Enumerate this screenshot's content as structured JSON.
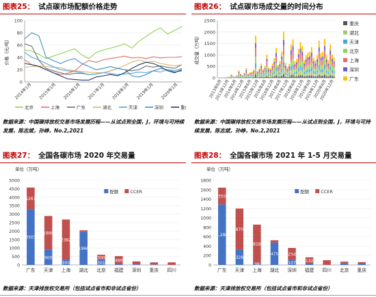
{
  "figures": {
    "fig25": {
      "label": "图表25：",
      "title": "试点碳市场配额价格走势"
    },
    "fig26": {
      "label": "图表26：",
      "title": "试点碳市场成交量的时间分布"
    },
    "fig27": {
      "label": "图表27：",
      "title": "全国各碳市场 2020 年交易量"
    },
    "fig28": {
      "label": "图表28：",
      "title": "全国各碳市场 2021 年 1-5 月交易量"
    }
  },
  "sources": {
    "top_left": "数据来源：中国碳排放权交易市场发展历程——从试点到全国，J，环境与可持续发展，陈志斌，孙峥，No.2,2021",
    "top_right": "数据来源：中国碳排放权交易市场发展历程——从试点到全国，J，环境与可持续发展，陈志斌，孙峥，No.2,2021",
    "bottom_left": "数据来源：天津排放权交易所（包括试点省市和非试点省份）",
    "bottom_right": "数据来源：天津排放权交易所（包括试点省市和非试点省份）"
  },
  "chart_data": [
    {
      "id": "fig25",
      "type": "line",
      "title": "",
      "ylabel": "价格（元/吨）",
      "ylim": [
        0,
        100
      ],
      "yticks": [
        0,
        20,
        40,
        60,
        80,
        100
      ],
      "x_ticks": [
        "2014年1月",
        "2015年1月",
        "2016年1月",
        "2017年1月",
        "2018年1月",
        "2019年1月",
        "2020年1月"
      ],
      "legend_position": "bottom",
      "series": [
        {
          "name": "北京",
          "color": "#92d050",
          "values": [
            52,
            50,
            45,
            38,
            42,
            46,
            50,
            54,
            44,
            38,
            48,
            52,
            55,
            58,
            62,
            55,
            66,
            74,
            82,
            88,
            78,
            84,
            90
          ]
        },
        {
          "name": "上海",
          "color": "#e46c6c",
          "values": [
            36,
            28,
            26,
            20,
            15,
            12,
            14,
            18,
            28,
            35,
            32,
            36,
            38,
            40,
            42,
            39,
            40,
            38,
            41,
            39,
            40,
            40,
            41
          ]
        },
        {
          "name": "广东",
          "color": "#6f6f6f",
          "values": [
            62,
            58,
            35,
            22,
            18,
            15,
            12,
            14,
            14,
            12,
            13,
            15,
            18,
            22,
            20,
            18,
            20,
            26,
            24,
            26,
            24,
            22,
            28
          ]
        },
        {
          "name": "湖北",
          "color": "#d9b36c",
          "values": [
            24,
            25,
            26,
            25,
            24,
            23,
            20,
            18,
            17,
            16,
            15,
            15,
            18,
            22,
            27,
            32,
            36,
            32,
            34,
            30,
            28,
            26,
            28
          ]
        },
        {
          "name": "天津",
          "color": "#4ea3d8",
          "values": [
            48,
            40,
            36,
            30,
            25,
            20,
            18,
            17,
            15,
            12,
            13,
            15,
            14,
            12,
            13,
            14,
            16,
            15,
            18,
            16,
            20,
            18,
            22
          ]
        },
        {
          "name": "深圳",
          "color": "#3c8fc4",
          "values": [
            70,
            80,
            75,
            40,
            35,
            30,
            35,
            38,
            30,
            25,
            20,
            22,
            25,
            22,
            20,
            10,
            8,
            12,
            18,
            22,
            20,
            16,
            18
          ]
        },
        {
          "name": "重庆",
          "color": "#1f3864",
          "values": [
            30,
            28,
            25,
            20,
            15,
            10,
            5,
            4,
            3,
            3,
            8,
            10,
            12,
            10,
            15,
            22,
            28,
            32,
            30,
            25,
            18,
            15,
            20
          ]
        }
      ]
    },
    {
      "id": "fig26",
      "type": "bar",
      "title": "",
      "ylabel": "成交量（万吨）",
      "ylim": [
        0,
        2500
      ],
      "yticks": [
        0,
        500,
        1000,
        1500,
        2000,
        2500
      ],
      "x_ticks": [
        "2013年6月",
        "2013年12月",
        "2014年6月",
        "2014年12月",
        "2015年6月",
        "2015年12月",
        "2016年6月",
        "2016年12月",
        "2017年6月",
        "2017年12月",
        "2018年6月",
        "2018年12月",
        "2019年6月",
        "2019年12月",
        "2020年6月",
        "2020年12月"
      ],
      "legend_position": "right",
      "series_names": [
        "重庆",
        "湖北",
        "天津",
        "北京",
        "上海",
        "深圳",
        "广东"
      ],
      "series_colors": [
        "#555555",
        "#a8c76e",
        "#4aa3df",
        "#92d050",
        "#e46c6c",
        "#6a5acd",
        "#ffc000"
      ],
      "totals": [
        5,
        10,
        15,
        20,
        30,
        40,
        60,
        150,
        80,
        60,
        120,
        320,
        180,
        120,
        220,
        420,
        180,
        240,
        260,
        360,
        1840,
        300,
        420,
        620,
        380,
        520,
        1010,
        460,
        420,
        620,
        860,
        1310,
        560,
        720,
        1140,
        2020,
        640,
        460,
        600,
        1460,
        1680,
        720,
        820,
        1260,
        1560,
        1380,
        760,
        980,
        1090,
        1140,
        1340,
        880,
        760,
        980,
        1620,
        1080,
        1140,
        1700,
        980,
        760,
        1460,
        1020,
        880
      ]
    },
    {
      "id": "fig27",
      "type": "bar",
      "title": "",
      "unit_label": "单位（万吨）",
      "ylim": [
        0,
        5000
      ],
      "yticks": [
        0,
        500,
        1000,
        1500,
        2000,
        2500,
        3000,
        3500,
        4000,
        4500,
        5000
      ],
      "categories": [
        "广东",
        "天津",
        "上海",
        "湖北",
        "北京",
        "福建",
        "深圳",
        "重庆",
        "四川"
      ],
      "legend_position": "top-right",
      "series": [
        {
          "name": "配额",
          "color": "#4472c4",
          "values": [
            3303,
            900,
            300,
            1966,
            301,
            40,
            35,
            30,
            0
          ]
        },
        {
          "name": "CCER",
          "color": "#c0504d",
          "values": [
            1267,
            1990,
            2382,
            80,
            300,
            480,
            170,
            120,
            150
          ]
        }
      ],
      "data_labels": [
        {
          "series": "配额",
          "category": "广东",
          "text": "3303"
        },
        {
          "series": "CCER",
          "category": "广东",
          "text": "1267"
        },
        {
          "series": "配额",
          "category": "天津",
          "text": "900"
        },
        {
          "series": "CCER",
          "category": "天津",
          "text": "1990"
        },
        {
          "series": "配额",
          "category": "上海",
          "text": "300"
        },
        {
          "series": "CCER",
          "category": "上海",
          "text": "2382"
        },
        {
          "series": "配额",
          "category": "湖北",
          "text": "1966"
        },
        {
          "series": "配额",
          "category": "北京",
          "text": "301"
        },
        {
          "series": "CCER",
          "category": "北京",
          "text": "300"
        },
        {
          "series": "CCER",
          "category": "福建",
          "text": "480"
        }
      ]
    },
    {
      "id": "fig28",
      "type": "bar",
      "title": "",
      "unit_label": "单位（万吨）",
      "ylim": [
        0,
        1800
      ],
      "yticks": [
        0,
        200,
        400,
        600,
        800,
        1000,
        1200,
        1400,
        1600,
        1800
      ],
      "categories": [
        "广东",
        "天津",
        "上海",
        "湖北",
        "深圳",
        "福建",
        "四川",
        "北京",
        "重庆"
      ],
      "legend_position": "top-right",
      "series": [
        {
          "name": "配额",
          "color": "#4472c4",
          "values": [
            1288,
            328,
            39,
            475,
            107,
            30,
            0,
            40,
            30
          ]
        },
        {
          "name": "CCER",
          "color": "#c0504d",
          "values": [
            355,
            870,
            818,
            50,
            254,
            132,
            100,
            30,
            30
          ]
        }
      ],
      "data_labels": [
        {
          "series": "配额",
          "category": "广东",
          "text": "1,288"
        },
        {
          "series": "CCER",
          "category": "广东",
          "text": "355"
        },
        {
          "series": "配额",
          "category": "天津",
          "text": "328"
        },
        {
          "series": "CCER",
          "category": "天津",
          "text": "870"
        },
        {
          "series": "配额",
          "category": "上海",
          "text": "39"
        },
        {
          "series": "CCER",
          "category": "上海",
          "text": "818"
        },
        {
          "series": "配额",
          "category": "湖北",
          "text": "475"
        },
        {
          "series": "配额",
          "category": "深圳",
          "text": "107"
        },
        {
          "series": "CCER",
          "category": "深圳",
          "text": "254"
        },
        {
          "series": "CCER",
          "category": "福建",
          "text": "132"
        }
      ]
    }
  ]
}
